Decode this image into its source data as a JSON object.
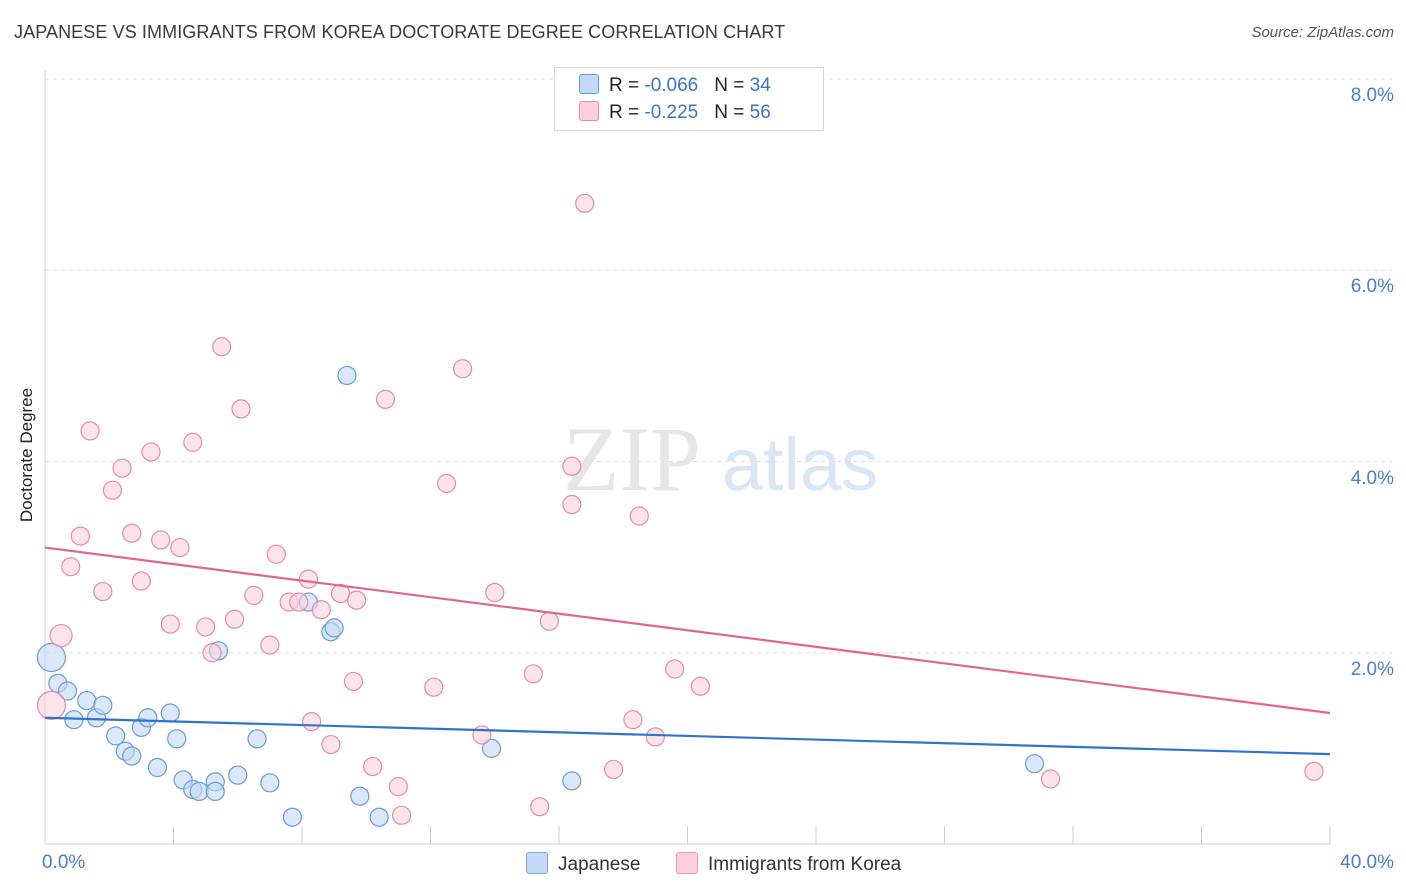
{
  "title": "JAPANESE VS IMMIGRANTS FROM KOREA DOCTORATE DEGREE CORRELATION CHART",
  "source": "Source: ZipAtlas.com",
  "watermark": {
    "zip": "ZIP",
    "atlas": "atlas"
  },
  "legend": {
    "r_label": "R = ",
    "n_label": "N = ",
    "rows": [
      {
        "r": "-0.066",
        "n": "34",
        "color": "#a9c8ef",
        "border": "#6a9ad8"
      },
      {
        "r": "-0.225",
        "n": "56",
        "color": "#f9c3d3",
        "border": "#e58aa8"
      }
    ]
  },
  "bottom_legend": [
    {
      "label": "Japanese",
      "color": "#c3d9f5",
      "border": "#7aa6dc"
    },
    {
      "label": "Immigrants from Korea",
      "color": "#fbd0dc",
      "border": "#e99bb5"
    }
  ],
  "chart_data": {
    "type": "scatter",
    "title": "JAPANESE VS IMMIGRANTS FROM KOREA DOCTORATE DEGREE CORRELATION CHART",
    "xlabel": "",
    "ylabel": "Doctorate Degree",
    "xlim": [
      0,
      40
    ],
    "ylim": [
      0,
      8.4
    ],
    "x_tick_labels": [
      "0.0%",
      "40.0%"
    ],
    "y_ticks": [
      2,
      4,
      6,
      8
    ],
    "y_tick_labels": [
      "2.0%",
      "4.0%",
      "6.0%",
      "8.0%"
    ],
    "grid": "horizontal dashed",
    "series": [
      {
        "name": "Japanese",
        "color": "#6a9ad8",
        "fill": "#c3d9f5",
        "trend": {
          "x": [
            0,
            40
          ],
          "y": [
            1.32,
            0.94
          ]
        },
        "points": [
          [
            0.2,
            1.95,
            14
          ],
          [
            0.4,
            1.68,
            9
          ],
          [
            0.7,
            1.6,
            9
          ],
          [
            0.9,
            1.3,
            9
          ],
          [
            1.3,
            1.5,
            9
          ],
          [
            1.6,
            1.32,
            9
          ],
          [
            1.8,
            1.45,
            9
          ],
          [
            2.2,
            1.13,
            9
          ],
          [
            2.5,
            0.97,
            9
          ],
          [
            2.7,
            0.92,
            9
          ],
          [
            3.0,
            1.22,
            9
          ],
          [
            3.2,
            1.32,
            9
          ],
          [
            3.5,
            0.8,
            9
          ],
          [
            3.9,
            1.37,
            9
          ],
          [
            4.1,
            1.1,
            9
          ],
          [
            4.3,
            0.67,
            9
          ],
          [
            4.6,
            0.57,
            9
          ],
          [
            4.8,
            0.55,
            9
          ],
          [
            5.3,
            0.65,
            9
          ],
          [
            5.3,
            0.55,
            9
          ],
          [
            5.4,
            2.02,
            9
          ],
          [
            6.0,
            0.72,
            9
          ],
          [
            6.6,
            1.1,
            9
          ],
          [
            7.0,
            0.64,
            9
          ],
          [
            7.7,
            0.28,
            9
          ],
          [
            8.2,
            2.53,
            9
          ],
          [
            8.9,
            2.22,
            9
          ],
          [
            9.0,
            2.26,
            9
          ],
          [
            9.4,
            4.9,
            9
          ],
          [
            9.8,
            0.5,
            9
          ],
          [
            10.4,
            0.28,
            9
          ],
          [
            13.9,
            1.0,
            9
          ],
          [
            16.4,
            0.66,
            9
          ],
          [
            30.8,
            0.84,
            9
          ]
        ]
      },
      {
        "name": "Immigrants from Korea",
        "color": "#e58aa8",
        "fill": "#fbd0dc",
        "trend": {
          "x": [
            0,
            40
          ],
          "y": [
            3.1,
            1.37
          ]
        },
        "points": [
          [
            0.2,
            1.45,
            14
          ],
          [
            0.5,
            2.18,
            11
          ],
          [
            0.8,
            2.9,
            9
          ],
          [
            1.1,
            3.22,
            9
          ],
          [
            1.4,
            4.32,
            9
          ],
          [
            1.8,
            2.64,
            9
          ],
          [
            2.1,
            3.7,
            9
          ],
          [
            2.4,
            3.93,
            9
          ],
          [
            2.7,
            3.25,
            9
          ],
          [
            3.0,
            2.75,
            9
          ],
          [
            3.3,
            4.1,
            9
          ],
          [
            3.6,
            3.18,
            9
          ],
          [
            3.9,
            2.3,
            9
          ],
          [
            4.2,
            3.1,
            9
          ],
          [
            4.6,
            4.2,
            9
          ],
          [
            5.0,
            2.27,
            9
          ],
          [
            5.2,
            2.0,
            9
          ],
          [
            5.5,
            5.2,
            9
          ],
          [
            5.9,
            2.35,
            9
          ],
          [
            6.1,
            4.55,
            9
          ],
          [
            6.5,
            2.6,
            9
          ],
          [
            7.0,
            2.08,
            9
          ],
          [
            7.2,
            3.03,
            9
          ],
          [
            7.6,
            2.53,
            9
          ],
          [
            7.9,
            2.53,
            9
          ],
          [
            8.2,
            2.77,
            9
          ],
          [
            8.3,
            1.28,
            9
          ],
          [
            8.6,
            2.45,
            9
          ],
          [
            8.9,
            1.04,
            9
          ],
          [
            9.2,
            2.62,
            9
          ],
          [
            9.6,
            1.7,
            9
          ],
          [
            9.7,
            2.55,
            9
          ],
          [
            10.2,
            0.81,
            9
          ],
          [
            10.6,
            4.65,
            9
          ],
          [
            11.0,
            0.6,
            9
          ],
          [
            11.1,
            0.3,
            9
          ],
          [
            12.1,
            1.64,
            9
          ],
          [
            12.5,
            3.77,
            9
          ],
          [
            13.0,
            4.97,
            9
          ],
          [
            13.6,
            1.14,
            9
          ],
          [
            14.0,
            2.63,
            9
          ],
          [
            15.2,
            1.78,
            9
          ],
          [
            15.4,
            0.39,
            9
          ],
          [
            15.7,
            2.33,
            9
          ],
          [
            16.4,
            3.95,
            9
          ],
          [
            16.4,
            3.55,
            9
          ],
          [
            16.8,
            6.7,
            9
          ],
          [
            17.7,
            0.78,
            9
          ],
          [
            18.3,
            1.3,
            9
          ],
          [
            18.5,
            3.43,
            9
          ],
          [
            19.0,
            1.12,
            9
          ],
          [
            19.6,
            1.83,
            9
          ],
          [
            20.4,
            1.65,
            9
          ],
          [
            31.3,
            0.68,
            9
          ],
          [
            39.5,
            0.76,
            9
          ],
          [
            18.4,
            7.65,
            9
          ]
        ]
      }
    ]
  }
}
